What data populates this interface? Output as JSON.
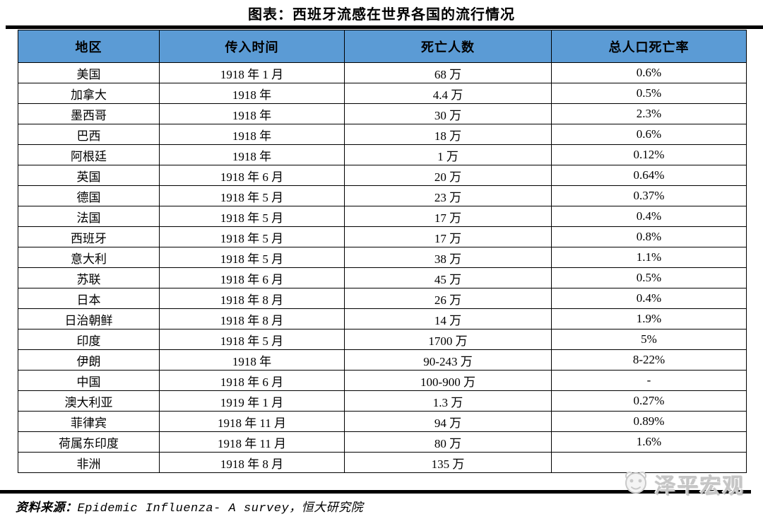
{
  "chart_data": {
    "type": "table",
    "title": "图表：西班牙流感在世界各国的流行情况",
    "columns": [
      "地区",
      "传入时间",
      "死亡人数",
      "总人口死亡率"
    ],
    "rows": [
      [
        "美国",
        "1918 年 1 月",
        "68 万",
        "0.6%"
      ],
      [
        "加拿大",
        "1918 年",
        "4.4 万",
        "0.5%"
      ],
      [
        "墨西哥",
        "1918 年",
        "30 万",
        "2.3%"
      ],
      [
        "巴西",
        "1918 年",
        "18 万",
        "0.6%"
      ],
      [
        "阿根廷",
        "1918 年",
        "1 万",
        "0.12%"
      ],
      [
        "英国",
        "1918 年 6 月",
        "20 万",
        "0.64%"
      ],
      [
        "德国",
        "1918 年 5 月",
        "23 万",
        "0.37%"
      ],
      [
        "法国",
        "1918 年 5 月",
        "17 万",
        "0.4%"
      ],
      [
        "西班牙",
        "1918 年 5 月",
        "17 万",
        "0.8%"
      ],
      [
        "意大利",
        "1918 年 5 月",
        "38 万",
        "1.1%"
      ],
      [
        "苏联",
        "1918 年 6 月",
        "45 万",
        "0.5%"
      ],
      [
        "日本",
        "1918 年 8 月",
        "26 万",
        "0.4%"
      ],
      [
        "日治朝鲜",
        "1918 年 8 月",
        "14 万",
        "1.9%"
      ],
      [
        "印度",
        "1918 年 5 月",
        "1700 万",
        "5%"
      ],
      [
        "伊朗",
        "1918 年",
        "90-243 万",
        "8-22%"
      ],
      [
        "中国",
        "1918 年 6 月",
        "100-900 万",
        "-"
      ],
      [
        "澳大利亚",
        "1919 年 1 月",
        "1.3 万",
        "0.27%"
      ],
      [
        "菲律宾",
        "1918 年 11 月",
        "94 万",
        "0.89%"
      ],
      [
        "荷属东印度",
        "1918 年 11 月",
        "80 万",
        "1.6%"
      ],
      [
        "非洲",
        "1918 年 8 月",
        "135 万",
        ""
      ]
    ],
    "layout": {
      "header_row": true,
      "grid": "all-borders"
    }
  },
  "source_note": {
    "label": "资料来源：",
    "text": "Epidemic Influenza- A survey，恒大研究院"
  },
  "watermark": {
    "text": "泽平宏观"
  },
  "colors": {
    "header_bg": "#5B9BD5",
    "rule": "#000000",
    "watermark_gray": "#c6c6c6"
  }
}
